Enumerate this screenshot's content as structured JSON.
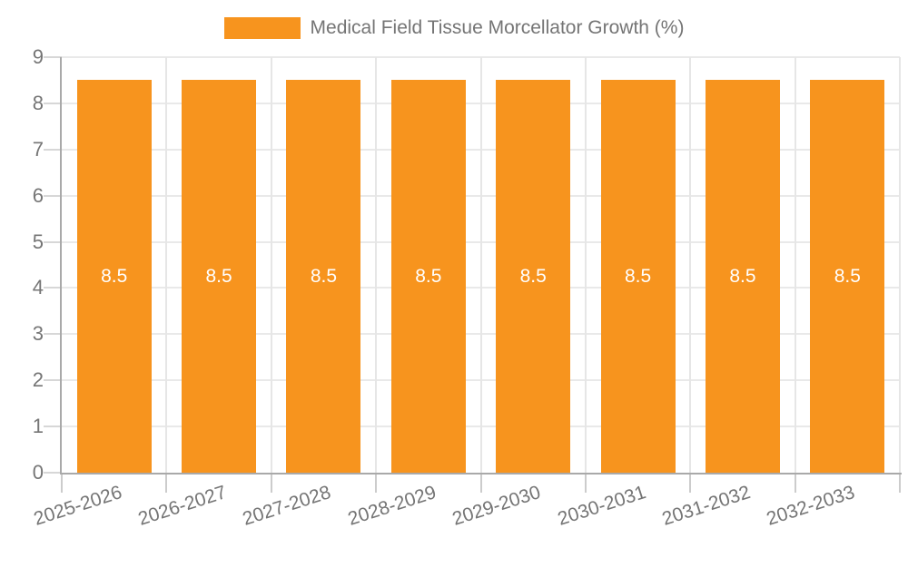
{
  "legend": {
    "position": "top",
    "items": [
      {
        "label": "Medical Field Tissue Morcellator Growth (%)",
        "color": "#f7941e"
      }
    ]
  },
  "chart_data": {
    "type": "bar",
    "title": "Medical Field Tissue Morcellator Growth (%)",
    "series_name": "Medical Field Tissue Morcellator Growth (%)",
    "categories": [
      "2025-2026",
      "2026-2027",
      "2027-2028",
      "2028-2029",
      "2029-2030",
      "2030-2031",
      "2031-2032",
      "2032-2033"
    ],
    "values": [
      8.5,
      8.5,
      8.5,
      8.5,
      8.5,
      8.5,
      8.5,
      8.5
    ],
    "value_labels": [
      "8.5",
      "8.5",
      "8.5",
      "8.5",
      "8.5",
      "8.5",
      "8.5",
      "8.5"
    ],
    "xlabel": "",
    "ylabel": "",
    "ylim": [
      0,
      9
    ],
    "yticks": [
      0,
      1,
      2,
      3,
      4,
      5,
      6,
      7,
      8,
      9
    ],
    "grid": "on",
    "legend_position": "top",
    "x_label_rotation_deg": -18,
    "colors": {
      "bar": "#f7941e",
      "value_label": "#ffffff",
      "axis_label": "#757575",
      "grid": "#e8e8e8",
      "axis_line": "#a9a9a9",
      "tick": "#d0d0d0",
      "background": "#ffffff"
    }
  }
}
